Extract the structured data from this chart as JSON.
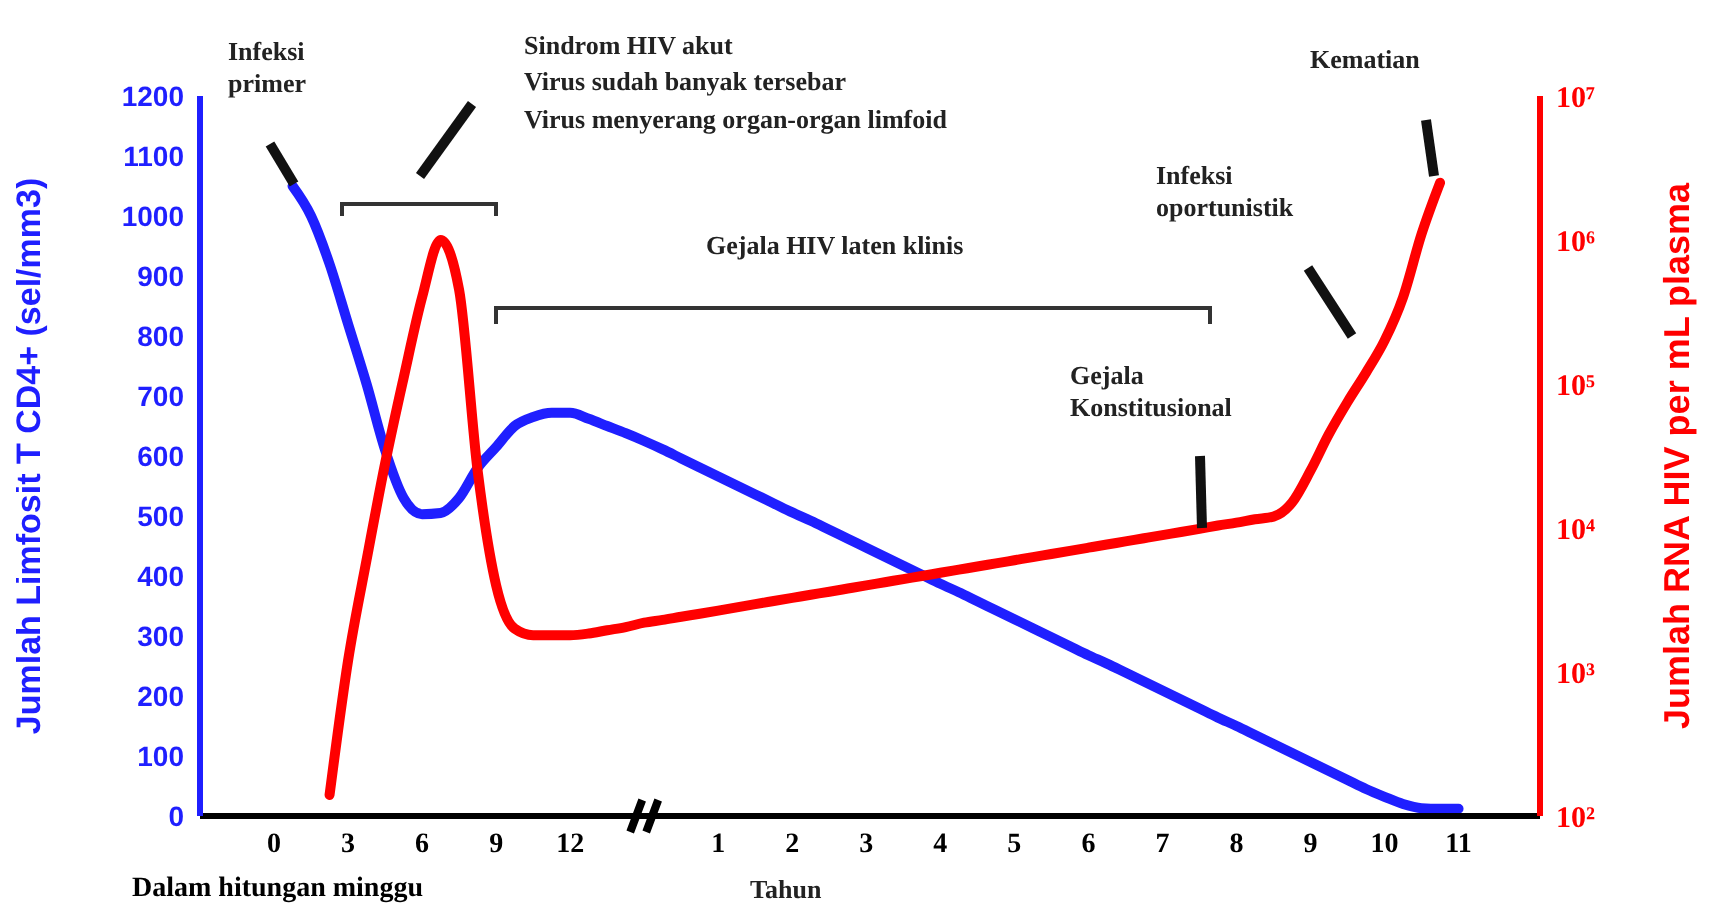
{
  "chart_data": {
    "type": "line",
    "xlabel": "Dalam hitungan minggu",
    "ylabel": "Jumlah Limfosit T CD4+ (sel/mm3)",
    "y2label": "Jumlah RNA HIV per mL plasma",
    "categories": [
      "0",
      null,
      null,
      null,
      "3",
      null,
      null,
      null,
      "6",
      null,
      null,
      null,
      "9",
      null,
      null,
      null,
      "12",
      null,
      null,
      null,
      null,
      null,
      null,
      null,
      "1",
      null,
      null,
      null,
      "2",
      null,
      null,
      null,
      "3",
      null,
      null,
      null,
      "4",
      null,
      null,
      null,
      "5",
      null,
      null,
      null,
      "6",
      null,
      null,
      null,
      "7",
      null,
      null,
      null,
      "8",
      null,
      null,
      null,
      "9",
      null,
      null,
      null,
      "10",
      null,
      null,
      null,
      "11"
    ],
    "ylim": [
      0,
      1200
    ],
    "yticks": [
      0,
      100,
      200,
      300,
      400,
      500,
      600,
      700,
      800,
      900,
      1000,
      1100,
      1200
    ],
    "y2lim": [
      100,
      10000000
    ],
    "y2ticks": [
      {
        "value": 100,
        "label": "10²"
      },
      {
        "value": 1000,
        "label": "10³"
      },
      {
        "value": 10000,
        "label": "10⁴"
      },
      {
        "value": 100000,
        "label": "10⁵"
      },
      {
        "value": 1000000,
        "label": "10⁶"
      },
      {
        "value": 10000000,
        "label": "10⁷"
      }
    ],
    "log": "y2",
    "grid": false,
    "legend": false,
    "marker": "none",
    "line_style": "solid",
    "series": [
      {
        "color": "#1f1fff",
        "values": [
          null,
          1050,
          1000,
          920,
          820,
          720,
          610,
          530,
          503,
          505,
          530,
          580,
          615,
          650,
          665,
          672,
          672,
          662,
          650,
          638,
          625,
          611,
          596,
          581,
          566,
          551,
          536,
          521,
          506,
          492,
          477,
          462,
          447,
          432,
          417,
          402,
          387,
          373,
          358,
          343,
          328,
          313,
          298,
          283,
          268,
          254,
          239,
          224,
          209,
          194,
          179,
          164,
          150,
          135,
          120,
          105,
          90,
          75,
          60,
          45,
          32,
          20,
          13,
          12,
          12
        ]
      },
      {
        "color": "#ff0000",
        "axis": "y2",
        "values": [
          null,
          null,
          null,
          140,
          1200,
          6000,
          28000,
          110000,
          400000,
          1000000,
          450000,
          25000,
          4000,
          2000,
          1800,
          1800,
          1800,
          1850,
          1950,
          2050,
          2200,
          2300,
          2420,
          2540,
          2670,
          2810,
          2960,
          3110,
          3270,
          3440,
          3610,
          3800,
          4000,
          4200,
          4420,
          4640,
          4890,
          5140,
          5400,
          5680,
          5970,
          6280,
          6600,
          6940,
          7300,
          7680,
          8070,
          8490,
          8930,
          9380,
          9870,
          10400,
          10900,
          11500,
          12000,
          15000,
          25000,
          45000,
          75000,
          120000,
          200000,
          400000,
          1100000,
          2500000,
          null
        ]
      }
    ],
    "annotations": [
      "Infeksi primer",
      "Sindrom HIV akut",
      "Virus sudah banyak tersebar",
      "Virus menyerang organ-organ limfoid",
      "Gejala HIV laten klinis",
      "Gejala Konstitusional",
      "Infeksi oportunistik",
      "Kematian",
      "Tahun"
    ]
  }
}
